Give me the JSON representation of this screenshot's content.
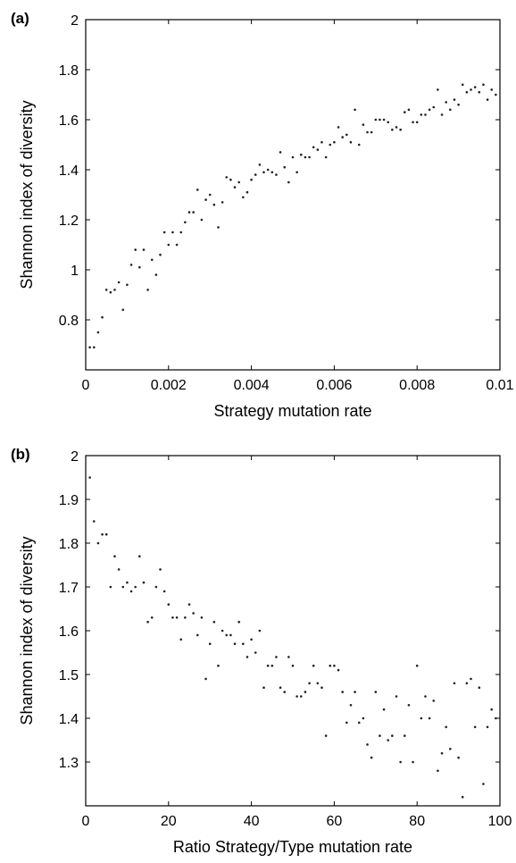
{
  "chart_data": [
    {
      "type": "scatter",
      "panel_label": "(a)",
      "xlabel": "Strategy mutation rate",
      "ylabel": "Shannon index of diversity",
      "xlim": [
        0,
        0.01
      ],
      "ylim": [
        0.6,
        2.0
      ],
      "xticks": [
        0,
        0.002,
        0.004,
        0.006,
        0.008,
        0.01
      ],
      "xtick_labels": [
        "0",
        "0.002",
        "0.004",
        "0.006",
        "0.008",
        "0.01"
      ],
      "yticks": [
        0.8,
        1.0,
        1.2,
        1.4,
        1.6,
        1.8,
        2.0
      ],
      "ytick_labels": [
        "0.8",
        "1",
        "1.2",
        "1.4",
        "1.6",
        "1.8",
        "2"
      ],
      "grid": false,
      "points": [
        [
          0.0001,
          0.69
        ],
        [
          0.0002,
          0.69
        ],
        [
          0.0003,
          0.75
        ],
        [
          0.0004,
          0.81
        ],
        [
          0.0005,
          0.92
        ],
        [
          0.0006,
          0.91
        ],
        [
          0.0007,
          0.92
        ],
        [
          0.0008,
          0.95
        ],
        [
          0.0009,
          0.84
        ],
        [
          0.001,
          0.94
        ],
        [
          0.0011,
          1.02
        ],
        [
          0.0012,
          1.08
        ],
        [
          0.0013,
          1.01
        ],
        [
          0.0014,
          1.08
        ],
        [
          0.0015,
          0.92
        ],
        [
          0.0016,
          1.04
        ],
        [
          0.0017,
          0.98
        ],
        [
          0.0018,
          1.06
        ],
        [
          0.0019,
          1.15
        ],
        [
          0.002,
          1.1
        ],
        [
          0.0021,
          1.15
        ],
        [
          0.0022,
          1.1
        ],
        [
          0.0023,
          1.15
        ],
        [
          0.0024,
          1.19
        ],
        [
          0.0025,
          1.23
        ],
        [
          0.0026,
          1.23
        ],
        [
          0.0027,
          1.32
        ],
        [
          0.0028,
          1.2
        ],
        [
          0.0029,
          1.28
        ],
        [
          0.003,
          1.3
        ],
        [
          0.0031,
          1.26
        ],
        [
          0.0032,
          1.17
        ],
        [
          0.0033,
          1.27
        ],
        [
          0.0034,
          1.37
        ],
        [
          0.0035,
          1.36
        ],
        [
          0.0036,
          1.33
        ],
        [
          0.0037,
          1.35
        ],
        [
          0.0038,
          1.29
        ],
        [
          0.0039,
          1.31
        ],
        [
          0.004,
          1.36
        ],
        [
          0.0041,
          1.38
        ],
        [
          0.0042,
          1.42
        ],
        [
          0.0043,
          1.39
        ],
        [
          0.0044,
          1.4
        ],
        [
          0.0045,
          1.39
        ],
        [
          0.0046,
          1.38
        ],
        [
          0.0047,
          1.47
        ],
        [
          0.0048,
          1.41
        ],
        [
          0.0049,
          1.35
        ],
        [
          0.005,
          1.45
        ],
        [
          0.0051,
          1.39
        ],
        [
          0.0052,
          1.46
        ],
        [
          0.0053,
          1.45
        ],
        [
          0.0054,
          1.45
        ],
        [
          0.0055,
          1.49
        ],
        [
          0.0056,
          1.48
        ],
        [
          0.0057,
          1.51
        ],
        [
          0.0058,
          1.45
        ],
        [
          0.0059,
          1.5
        ],
        [
          0.006,
          1.51
        ],
        [
          0.0061,
          1.57
        ],
        [
          0.0062,
          1.53
        ],
        [
          0.0063,
          1.54
        ],
        [
          0.0064,
          1.51
        ],
        [
          0.0065,
          1.64
        ],
        [
          0.0066,
          1.5
        ],
        [
          0.0067,
          1.58
        ],
        [
          0.0068,
          1.55
        ],
        [
          0.0069,
          1.55
        ],
        [
          0.007,
          1.6
        ],
        [
          0.0071,
          1.6
        ],
        [
          0.0072,
          1.6
        ],
        [
          0.0073,
          1.59
        ],
        [
          0.0074,
          1.56
        ],
        [
          0.0075,
          1.57
        ],
        [
          0.0076,
          1.56
        ],
        [
          0.0077,
          1.63
        ],
        [
          0.0078,
          1.64
        ],
        [
          0.0079,
          1.59
        ],
        [
          0.008,
          1.59
        ],
        [
          0.0081,
          1.62
        ],
        [
          0.0082,
          1.62
        ],
        [
          0.0083,
          1.64
        ],
        [
          0.0084,
          1.65
        ],
        [
          0.0085,
          1.72
        ],
        [
          0.0086,
          1.62
        ],
        [
          0.0087,
          1.67
        ],
        [
          0.0088,
          1.64
        ],
        [
          0.0089,
          1.68
        ],
        [
          0.009,
          1.66
        ],
        [
          0.0091,
          1.74
        ],
        [
          0.0092,
          1.71
        ],
        [
          0.0093,
          1.72
        ],
        [
          0.0094,
          1.73
        ],
        [
          0.0095,
          1.71
        ],
        [
          0.0096,
          1.74
        ],
        [
          0.0097,
          1.68
        ],
        [
          0.0098,
          1.72
        ],
        [
          0.0099,
          1.7
        ]
      ]
    },
    {
      "type": "scatter",
      "panel_label": "(b)",
      "xlabel": "Ratio Strategy/Type mutation rate",
      "ylabel": "Shannon index of diversity",
      "xlim": [
        0,
        100
      ],
      "ylim": [
        1.2,
        2.0
      ],
      "xticks": [
        0,
        20,
        40,
        60,
        80,
        100
      ],
      "xtick_labels": [
        "0",
        "20",
        "40",
        "60",
        "80",
        "100"
      ],
      "yticks": [
        1.3,
        1.4,
        1.5,
        1.6,
        1.7,
        1.8,
        1.9,
        2.0
      ],
      "ytick_labels": [
        "1.3",
        "1.4",
        "1.5",
        "1.6",
        "1.7",
        "1.8",
        "1.9",
        "2"
      ],
      "grid": false,
      "points": [
        [
          1,
          1.95
        ],
        [
          2,
          1.85
        ],
        [
          3,
          1.8
        ],
        [
          4,
          1.82
        ],
        [
          5,
          1.82
        ],
        [
          6,
          1.7
        ],
        [
          7,
          1.77
        ],
        [
          8,
          1.74
        ],
        [
          9,
          1.7
        ],
        [
          10,
          1.71
        ],
        [
          11,
          1.69
        ],
        [
          12,
          1.7
        ],
        [
          13,
          1.77
        ],
        [
          14,
          1.71
        ],
        [
          15,
          1.62
        ],
        [
          16,
          1.63
        ],
        [
          17,
          1.7
        ],
        [
          18,
          1.74
        ],
        [
          19,
          1.69
        ],
        [
          20,
          1.66
        ],
        [
          21,
          1.63
        ],
        [
          22,
          1.63
        ],
        [
          23,
          1.58
        ],
        [
          24,
          1.63
        ],
        [
          25,
          1.66
        ],
        [
          26,
          1.64
        ],
        [
          27,
          1.59
        ],
        [
          28,
          1.63
        ],
        [
          29,
          1.49
        ],
        [
          30,
          1.57
        ],
        [
          31,
          1.62
        ],
        [
          32,
          1.52
        ],
        [
          33,
          1.6
        ],
        [
          34,
          1.59
        ],
        [
          35,
          1.59
        ],
        [
          36,
          1.57
        ],
        [
          37,
          1.62
        ],
        [
          38,
          1.57
        ],
        [
          39,
          1.54
        ],
        [
          40,
          1.58
        ],
        [
          41,
          1.55
        ],
        [
          42,
          1.6
        ],
        [
          43,
          1.47
        ],
        [
          44,
          1.52
        ],
        [
          45,
          1.52
        ],
        [
          46,
          1.54
        ],
        [
          47,
          1.47
        ],
        [
          48,
          1.46
        ],
        [
          49,
          1.54
        ],
        [
          50,
          1.52
        ],
        [
          51,
          1.45
        ],
        [
          52,
          1.45
        ],
        [
          53,
          1.46
        ],
        [
          54,
          1.48
        ],
        [
          55,
          1.52
        ],
        [
          56,
          1.48
        ],
        [
          57,
          1.47
        ],
        [
          58,
          1.36
        ],
        [
          59,
          1.52
        ],
        [
          60,
          1.52
        ],
        [
          61,
          1.51
        ],
        [
          62,
          1.46
        ],
        [
          63,
          1.39
        ],
        [
          64,
          1.43
        ],
        [
          65,
          1.46
        ],
        [
          66,
          1.39
        ],
        [
          67,
          1.4
        ],
        [
          68,
          1.34
        ],
        [
          69,
          1.31
        ],
        [
          70,
          1.46
        ],
        [
          71,
          1.36
        ],
        [
          72,
          1.42
        ],
        [
          73,
          1.35
        ],
        [
          74,
          1.36
        ],
        [
          75,
          1.45
        ],
        [
          76,
          1.3
        ],
        [
          77,
          1.36
        ],
        [
          78,
          1.43
        ],
        [
          79,
          1.3
        ],
        [
          80,
          1.52
        ],
        [
          81,
          1.4
        ],
        [
          82,
          1.45
        ],
        [
          83,
          1.4
        ],
        [
          84,
          1.44
        ],
        [
          85,
          1.28
        ],
        [
          86,
          1.32
        ],
        [
          87,
          1.38
        ],
        [
          88,
          1.33
        ],
        [
          89,
          1.48
        ],
        [
          90,
          1.31
        ],
        [
          91,
          1.22
        ],
        [
          92,
          1.48
        ],
        [
          93,
          1.49
        ],
        [
          94,
          1.38
        ],
        [
          95,
          1.47
        ],
        [
          96,
          1.25
        ],
        [
          97,
          1.38
        ],
        [
          98,
          1.42
        ],
        [
          99,
          1.4
        ]
      ]
    }
  ]
}
